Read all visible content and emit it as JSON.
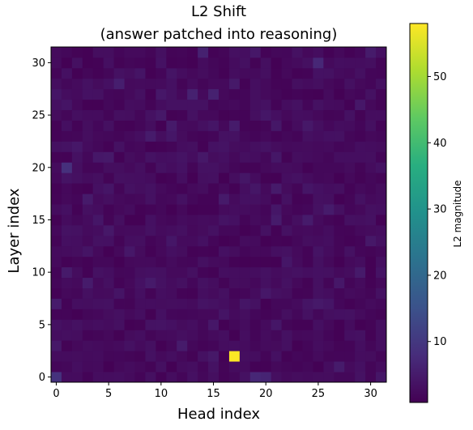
{
  "chart_data": {
    "type": "heatmap",
    "title_line1": "L2 Shift",
    "title_line2": "(answer patched into reasoning)",
    "xlabel": "Head index",
    "ylabel": "Layer index",
    "colorbar_label": "L2 magnitude",
    "colormap": "viridis",
    "x_ticks": [
      0,
      5,
      10,
      15,
      20,
      25,
      30
    ],
    "y_ticks": [
      0,
      5,
      10,
      15,
      20,
      25,
      30
    ],
    "x_range": [
      0,
      31
    ],
    "y_range": [
      0,
      31
    ],
    "colorbar_ticks": [
      10,
      20,
      30,
      40,
      50
    ],
    "value_range": [
      0.8,
      58
    ],
    "baseline_value": 2.2,
    "notable_cells": [
      {
        "layer": 2,
        "head": 17,
        "value": 58
      },
      {
        "layer": 20,
        "head": 1,
        "value": 8.5
      },
      {
        "layer": 0,
        "head": 0,
        "value": 9
      },
      {
        "layer": 0,
        "head": 19,
        "value": 7
      },
      {
        "layer": 0,
        "head": 20,
        "value": 6.5
      },
      {
        "layer": 30,
        "head": 25,
        "value": 7
      },
      {
        "layer": 31,
        "head": 14,
        "value": 6
      },
      {
        "layer": 27,
        "head": 13,
        "value": 6
      },
      {
        "layer": 27,
        "head": 15,
        "value": 6
      },
      {
        "layer": 28,
        "head": 6,
        "value": 5.5
      },
      {
        "layer": 15,
        "head": 21,
        "value": 5
      },
      {
        "layer": 15,
        "head": 24,
        "value": 5
      },
      {
        "layer": 16,
        "head": 26,
        "value": 5
      },
      {
        "layer": 9,
        "head": 3,
        "value": 5
      },
      {
        "layer": 7,
        "head": 0,
        "value": 5
      },
      {
        "layer": 2,
        "head": 15,
        "value": 4.5
      },
      {
        "layer": 1,
        "head": 27,
        "value": 5
      },
      {
        "layer": 25,
        "head": 10,
        "value": 4.5
      },
      {
        "layer": 13,
        "head": 30,
        "value": 4.5
      }
    ]
  }
}
